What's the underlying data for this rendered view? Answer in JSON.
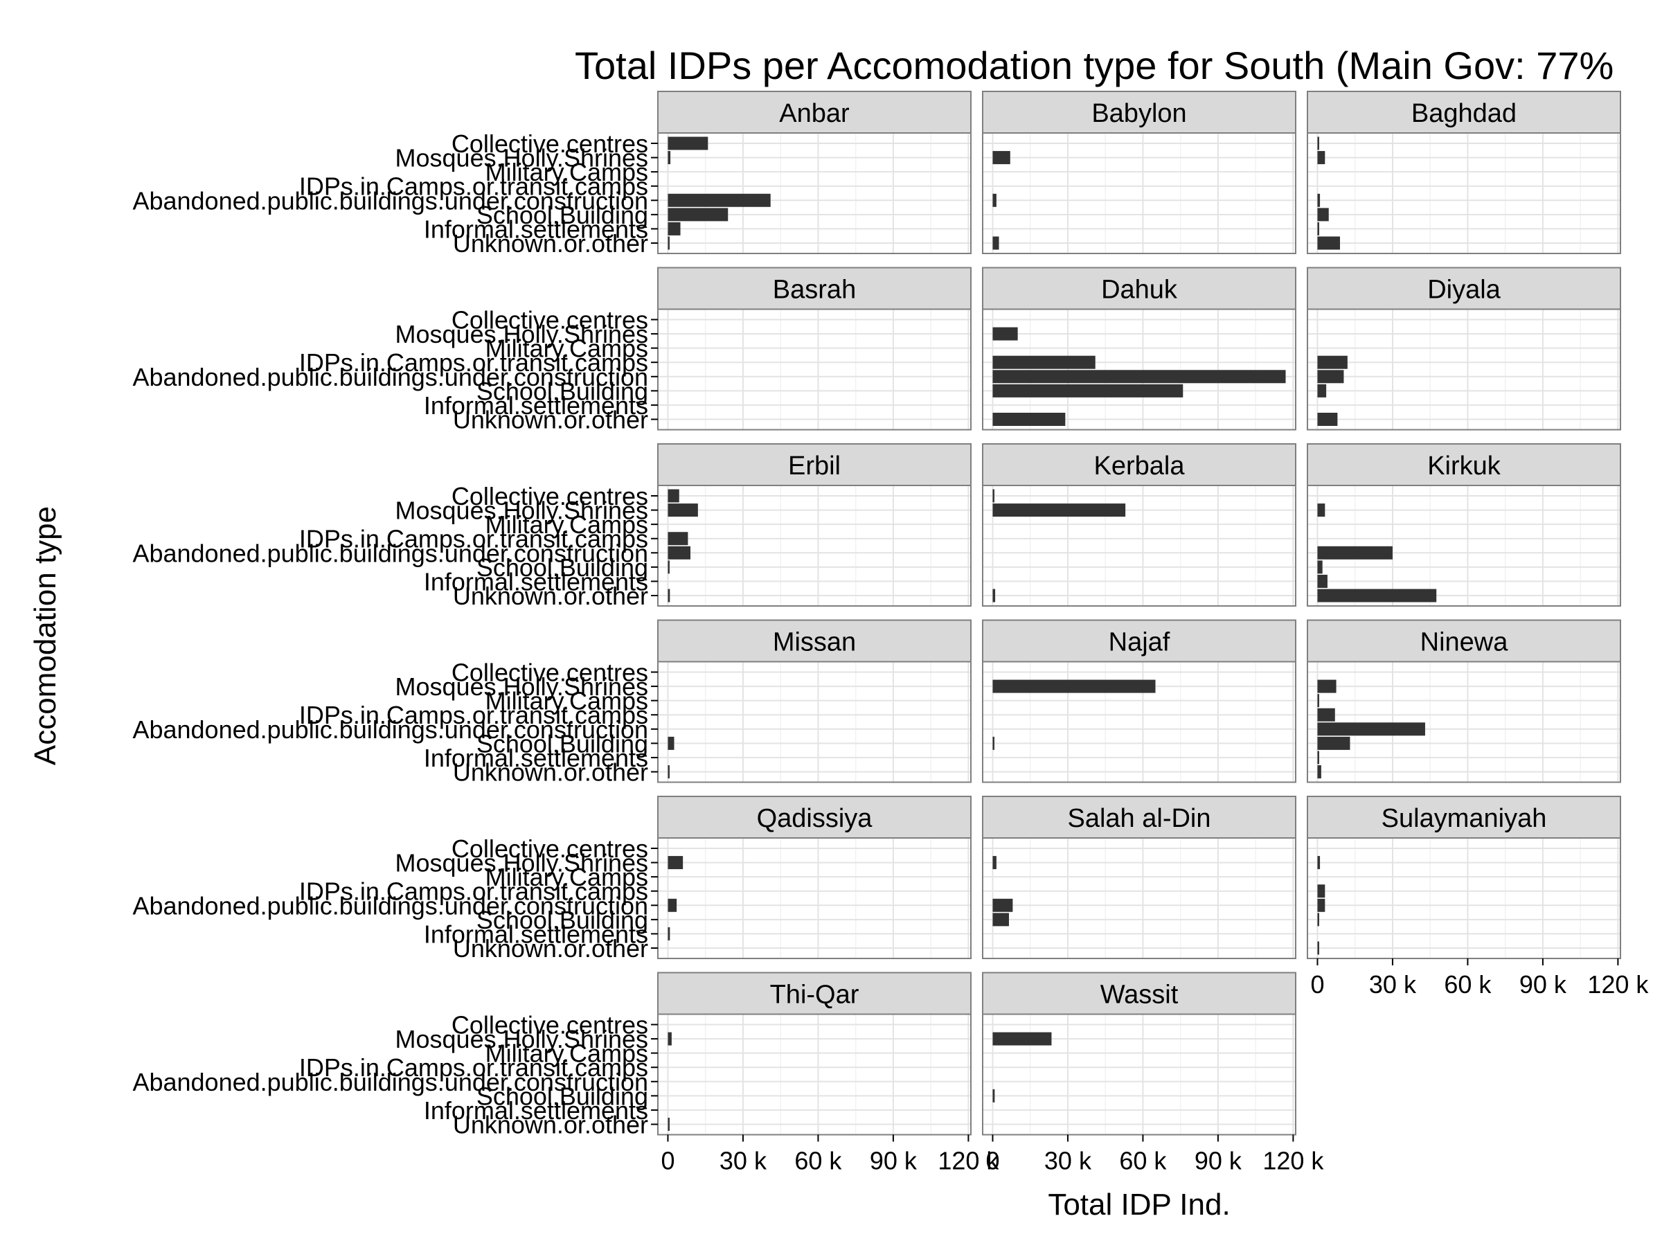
{
  "chart_data": {
    "type": "bar",
    "orientation": "horizontal",
    "title": "Total IDPs per Accomodation type for South (Main Gov: 77%",
    "xlabel": "Total IDP Ind.",
    "ylabel": "Accomodation type",
    "xlim": [
      -4,
      121
    ],
    "xticks": [
      0,
      30,
      60,
      90,
      120
    ],
    "xtick_labels": [
      "0",
      "30 k",
      "60 k",
      "90 k",
      "120 k"
    ],
    "value_unit": "thousand individuals",
    "grid": true,
    "legend": "none",
    "layout": "facet grid, 3 columns x 6 rows",
    "categories": [
      "Collective.centres",
      "Mosques.Holly.Shrines",
      "Military.Camps",
      "IDPs.in.Camps.or.transit.camps",
      "Abandoned.public.buildings.under.construction",
      "School.Building",
      "Informal.settlements",
      "Unknown.or.other"
    ],
    "colors": {
      "bar": "#333333",
      "strip_bg": "#d9d9d9",
      "panel_border": "#7f7f7f",
      "grid_major": "#e3e3e3",
      "grid_minor": "#f2f2f2"
    },
    "facets": [
      {
        "name": "Anbar",
        "values": [
          16,
          1,
          0,
          0,
          41,
          24,
          5,
          0.3
        ]
      },
      {
        "name": "Babylon",
        "values": [
          0,
          7,
          0,
          0,
          1.5,
          0,
          0,
          2.5
        ]
      },
      {
        "name": "Baghdad",
        "values": [
          0.3,
          3,
          0,
          0,
          1,
          4.5,
          0.5,
          9
        ]
      },
      {
        "name": "Basrah",
        "values": [
          0,
          0,
          0,
          0,
          0,
          0,
          0,
          0
        ]
      },
      {
        "name": "Dahuk",
        "values": [
          0,
          10,
          0,
          41,
          117,
          76,
          0,
          29
        ]
      },
      {
        "name": "Diyala",
        "values": [
          0,
          0,
          0,
          12,
          10.5,
          3.5,
          0,
          8
        ]
      },
      {
        "name": "Erbil",
        "values": [
          4.5,
          12,
          0,
          8,
          9,
          0.3,
          0,
          0.8
        ]
      },
      {
        "name": "Kerbala",
        "values": [
          0.3,
          53,
          0,
          0,
          0,
          0,
          0,
          1
        ]
      },
      {
        "name": "Kirkuk",
        "values": [
          0,
          3,
          0,
          0,
          30,
          2,
          4,
          47.5
        ]
      },
      {
        "name": "Missan",
        "values": [
          0,
          0,
          0,
          0,
          0,
          2.5,
          0,
          0.5
        ]
      },
      {
        "name": "Najaf",
        "values": [
          0,
          65,
          0,
          0,
          0,
          0.5,
          0,
          0
        ]
      },
      {
        "name": "Ninewa",
        "values": [
          0,
          7.5,
          0.5,
          7,
          43,
          13,
          0.5,
          1.5
        ]
      },
      {
        "name": "Qadissiya",
        "values": [
          0,
          6,
          0,
          0,
          3.5,
          0,
          0.8,
          0
        ]
      },
      {
        "name": "Salah al-Din",
        "values": [
          0,
          1.5,
          0,
          0,
          8,
          6.5,
          0,
          0
        ]
      },
      {
        "name": "Sulaymaniyah",
        "values": [
          0,
          1,
          0,
          3,
          3,
          0.3,
          0,
          0.3
        ]
      },
      {
        "name": "Thi-Qar",
        "values": [
          0,
          1.5,
          0,
          0,
          0,
          0,
          0,
          0.5
        ]
      },
      {
        "name": "Wassit",
        "values": [
          0,
          23.5,
          0,
          0,
          0,
          0.8,
          0,
          0
        ]
      }
    ]
  }
}
